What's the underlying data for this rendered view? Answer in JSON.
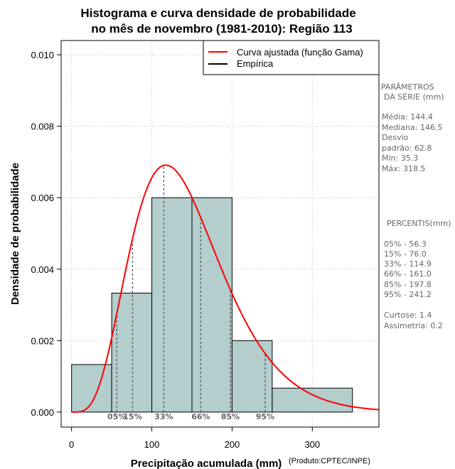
{
  "chart_data": {
    "type": "bar",
    "title_line1": "Histograma e curva densidade de probabilidade",
    "title_line2": "no mês de novembro (1981-2010): Região 113",
    "xlabel": "Precipitação acumulada (mm)",
    "ylabel": "Densidade de probabilidade",
    "credit": "(Produto:CPTEC/INPE)",
    "xlim": [
      -13,
      383
    ],
    "ylim": [
      -0.00042,
      0.0104
    ],
    "xticks": [
      0,
      100,
      200,
      300
    ],
    "xtick_labels": [
      "0",
      "100",
      "200",
      "300"
    ],
    "yticks": [
      0,
      0.002,
      0.004,
      0.006,
      0.008,
      0.01
    ],
    "ytick_labels": [
      "0.000",
      "0.002",
      "0.004",
      "0.006",
      "0.008",
      "0.010"
    ],
    "bins": [
      {
        "start": 0,
        "end": 50,
        "density": 0.00133
      },
      {
        "start": 50,
        "end": 100,
        "density": 0.00333
      },
      {
        "start": 100,
        "end": 150,
        "density": 0.006
      },
      {
        "start": 150,
        "end": 200,
        "density": 0.006
      },
      {
        "start": 200,
        "end": 250,
        "density": 0.002
      },
      {
        "start": 250,
        "end": 350,
        "density": 0.00067
      }
    ],
    "gamma_fit": {
      "shape": 5.3,
      "scale": 27.3,
      "x_start": 0,
      "x_end": 383
    },
    "percentile_lines": [
      {
        "label": "05%",
        "value": 56.3
      },
      {
        "label": "15%",
        "value": 76.0
      },
      {
        "label": "33%",
        "value": 114.9
      },
      {
        "label": "66%",
        "value": 161.0
      },
      {
        "label": "85%",
        "value": 197.8
      },
      {
        "label": "95%",
        "value": 241.2
      }
    ],
    "legend": {
      "position": "top-right",
      "items": [
        {
          "label": "Curva ajustada (função Gama)",
          "color": "#ff0000"
        },
        {
          "label": "Empírica",
          "color": "#000000"
        }
      ]
    },
    "colors": {
      "bar_fill": "#b4cdcd",
      "curve": "#ff0000",
      "grid": "#b3b3b3",
      "percentile_line": "#555555"
    }
  },
  "side_panel": {
    "params_title_1": "PARÂMETROS",
    "params_title_2": "DA SÉRIE (mm)",
    "stats": [
      "Média:  144.4",
      "Mediana:  146.5",
      "Desvio",
      "padrão:  62.8",
      "Mín:  35.3",
      "Máx:  318.5"
    ],
    "percentis_title": "PERCENTIS(mm)",
    "percentis": [
      "05% -  56.3",
      "15% -  76.0",
      "33% -  114.9",
      "66% -  161.0",
      "85% -  197.8",
      "95% -  241.2"
    ],
    "curtose": "Curtose:  1.4",
    "assimetria": "Assimetria:  0.2"
  }
}
